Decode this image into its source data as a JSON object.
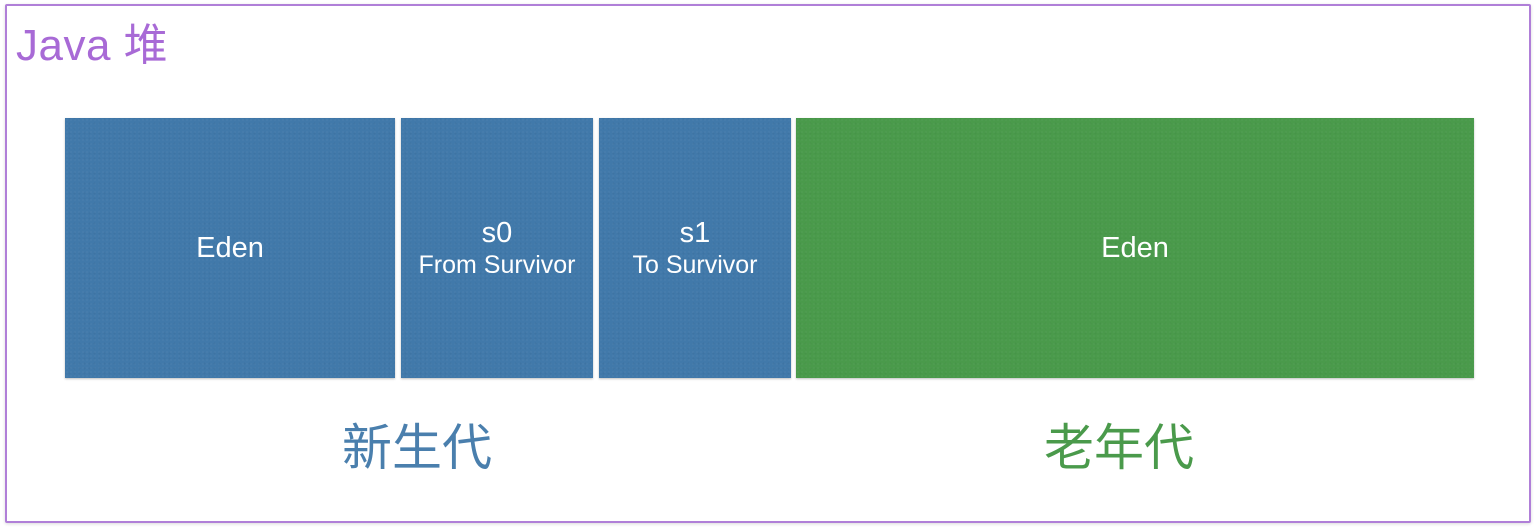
{
  "heap": {
    "title": "Java 堆",
    "border_color": "#b07fd8"
  },
  "regions": {
    "eden": {
      "name": "Eden"
    },
    "s0": {
      "name": "s0",
      "subtitle": "From Survivor"
    },
    "s1": {
      "name": "s1",
      "subtitle": "To Survivor"
    },
    "old": {
      "name": "Eden"
    }
  },
  "generations": {
    "young": {
      "label": "新生代",
      "color": "#4179aa"
    },
    "old": {
      "label": "老年代",
      "color": "#4a9a4b"
    }
  }
}
